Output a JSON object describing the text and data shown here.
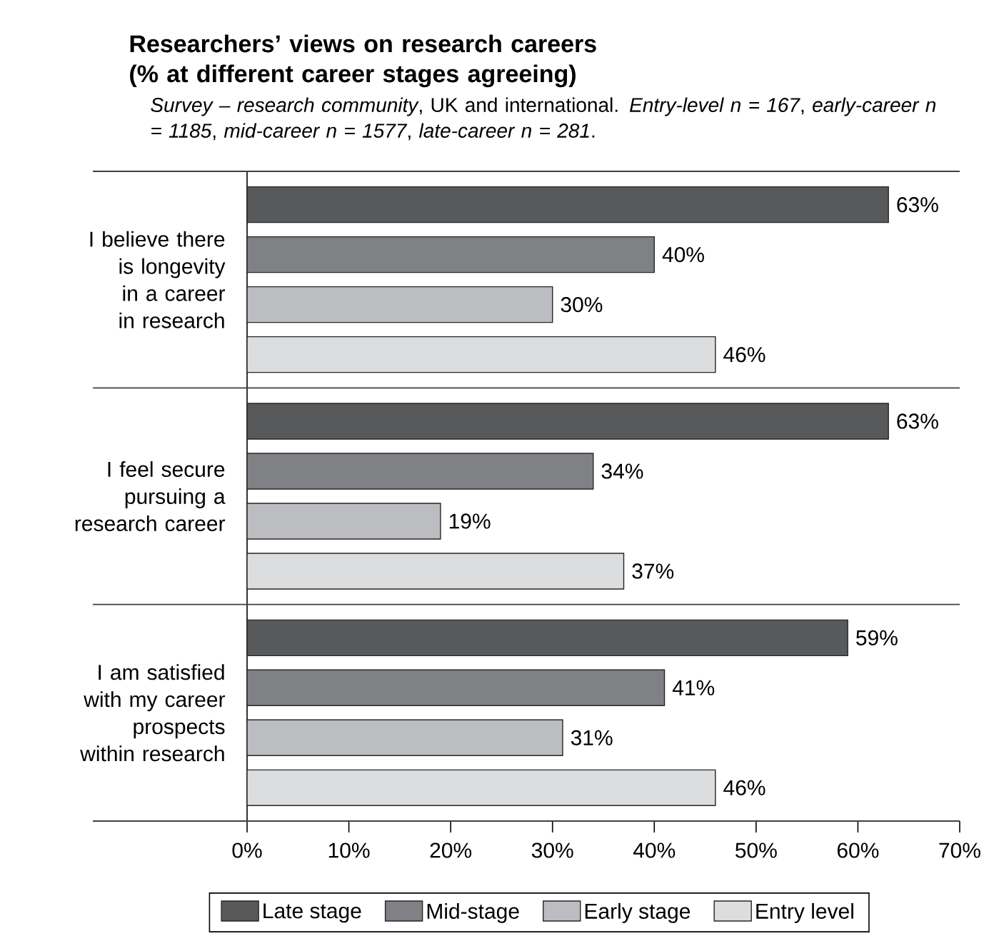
{
  "chart_data": {
    "type": "bar",
    "orientation": "horizontal",
    "title": "Researchers’ views on research careers (% at different career stages agreeing)",
    "subtitle": "*Survey – research community*, UK and international. *Entry-level n = 167*, *early-career n = 1185*, *mid-career n = 1577*, *late-career n = 281*.",
    "categories": [
      "I believe there is longevity in a career in research",
      "I feel secure pursuing a research career",
      "I am satisfied with my career prospects within research"
    ],
    "series": [
      {
        "name": "Late stage",
        "color": "#58595b",
        "values": [
          63,
          63,
          59
        ],
        "value_labels": [
          "63%",
          "63%",
          "59%"
        ]
      },
      {
        "name": "Mid-stage",
        "color": "#808184",
        "values": [
          40,
          34,
          41
        ],
        "value_labels": [
          "40%",
          "34%",
          "41%"
        ]
      },
      {
        "name": "Early stage",
        "color": "#bcbdc0",
        "values": [
          30,
          19,
          31
        ],
        "value_labels": [
          "30%",
          "19%",
          "31%"
        ]
      },
      {
        "name": "Entry level",
        "color": "#dcdddf",
        "values": [
          46,
          37,
          46
        ],
        "value_labels": [
          "46%",
          "37%",
          "46%"
        ]
      }
    ],
    "xlim": [
      0,
      70
    ],
    "xticks": [
      {
        "value": 0,
        "label": "0%"
      },
      {
        "value": 10,
        "label": "10%"
      },
      {
        "value": 20,
        "label": "20%"
      },
      {
        "value": 30,
        "label": "30%"
      },
      {
        "value": 40,
        "label": "40%"
      },
      {
        "value": 50,
        "label": "50%"
      },
      {
        "value": 60,
        "label": "60%"
      },
      {
        "value": 70,
        "label": "70%"
      }
    ],
    "legend": "bottom"
  }
}
